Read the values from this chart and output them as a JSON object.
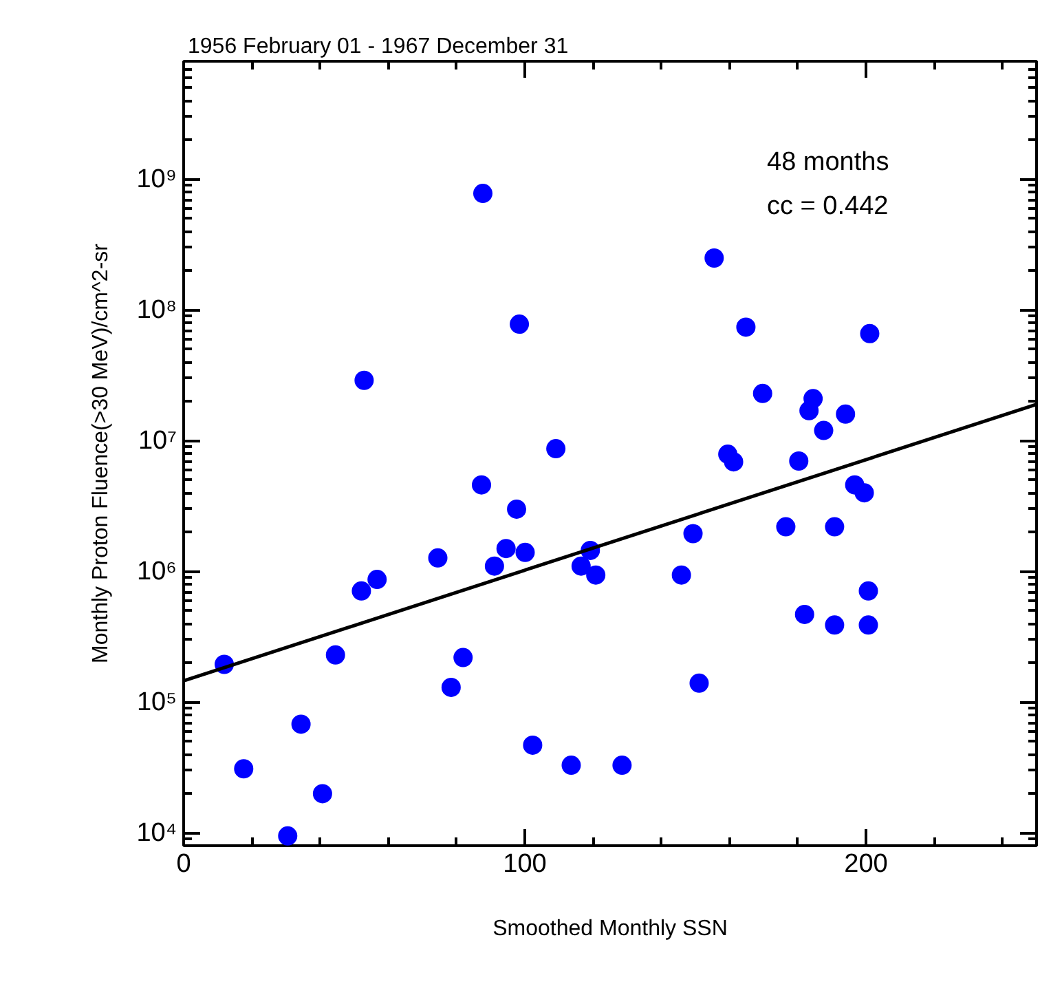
{
  "chart_data": {
    "type": "scatter",
    "title": "1956 February 01 - 1967 December 31",
    "xlabel": "Smoothed Monthly SSN",
    "ylabel": "Monthly Proton Fluence(>30 MeV)/cm^2-sr",
    "annotations": [
      "48 months",
      "cc = 0.442"
    ],
    "log": "y",
    "grid": false,
    "xlim": [
      0,
      250
    ],
    "xticks": [
      0,
      100,
      200
    ],
    "ylim": [
      8000,
      8000000000
    ],
    "yticks": [
      {
        "value": 10000,
        "label": "10⁴"
      },
      {
        "value": 100000,
        "label": "10⁵"
      },
      {
        "value": 1000000,
        "label": "10⁶"
      },
      {
        "value": 10000000,
        "label": "10⁷"
      },
      {
        "value": 100000000,
        "label": "10⁸"
      },
      {
        "value": 1000000000,
        "label": "10⁹"
      }
    ],
    "series": [
      {
        "marker": "circle",
        "color": "#0000ff",
        "x": [
          87.7,
          98.4,
          52.9,
          109.1,
          155.5,
          164.8,
          201.1,
          169.7,
          184.5,
          183.3,
          194,
          187.6,
          159.5,
          161.2,
          180.3,
          87.3,
          97.6,
          94.5,
          100.1,
          74.5,
          91.1,
          56.7,
          52.1,
          44.5,
          81.9,
          78.4,
          11.9,
          34.4,
          17.6,
          102.3,
          113.6,
          40.7,
          30.5,
          116.5,
          119.2,
          120.8,
          196.7,
          199.5,
          149.3,
          176.5,
          190.8,
          145.9,
          200.7,
          182,
          190.8,
          200.7,
          151.1,
          128.5
        ],
        "values": [
          780000000,
          78000000,
          29000000,
          8700000,
          250000000,
          74000000,
          66000000,
          23000000,
          21000000,
          17000000,
          16000000,
          12000000,
          7900000,
          6900000,
          7000000,
          4600000,
          3000000,
          1500000,
          1400000,
          1270000,
          1100000,
          870000,
          710000,
          230000,
          220000,
          130000,
          195000,
          68000,
          31000,
          47000,
          33000,
          20000,
          9500,
          1100000,
          1450000,
          940000,
          4600000,
          4000000,
          1950000,
          2200000,
          2200000,
          940000,
          710000,
          470000,
          390000,
          390000,
          140000,
          33000
        ]
      },
      {
        "type": "line",
        "color": "#000000",
        "x": [
          0,
          250
        ],
        "values": [
          146000,
          19000000
        ]
      }
    ]
  }
}
